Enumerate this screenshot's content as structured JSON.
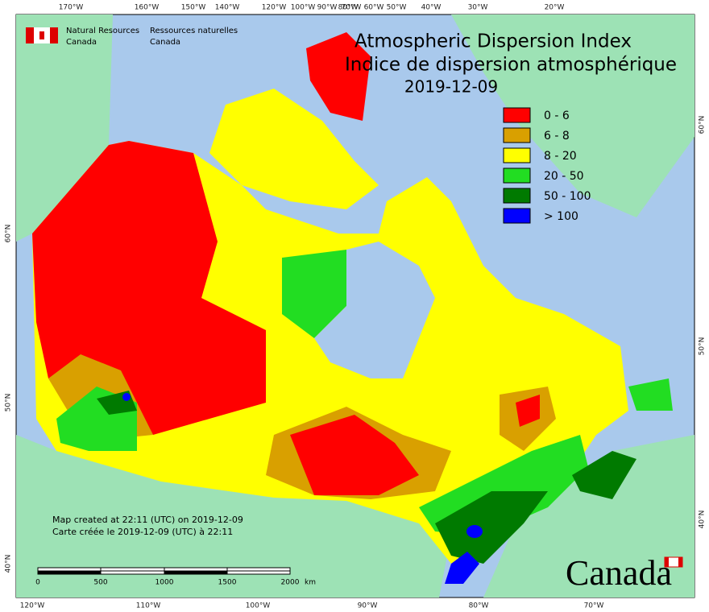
{
  "header": {
    "agency_en": [
      "Natural Resources",
      "Canada"
    ],
    "agency_fr": [
      "Ressources naturelles",
      "Canada"
    ]
  },
  "title": {
    "en": "Atmospheric Dispersion Index",
    "fr": "Indice de dispersion atmosphérique",
    "date": "2019-12-09"
  },
  "legend": [
    {
      "label": "0 - 6",
      "color": "#ff0000"
    },
    {
      "label": "6 - 8",
      "color": "#d9a000"
    },
    {
      "label": "8 - 20",
      "color": "#ffff00"
    },
    {
      "label": "20 - 50",
      "color": "#22dd22"
    },
    {
      "label": "50 - 100",
      "color": "#007a00"
    },
    {
      "label": "> 100",
      "color": "#0000ff"
    }
  ],
  "footer": [
    "Map created at 22:11 (UTC) on 2019-12-09",
    "Carte créée le 2019-12-09 (UTC) à 22:11"
  ],
  "scale_bar": {
    "labels": [
      0,
      500,
      1000,
      1500,
      2000
    ],
    "unit": "km"
  },
  "graticule": {
    "top": [
      "170°W",
      "160°W",
      "150°W",
      "140°W",
      "120°W",
      "100°W",
      "90°W",
      "80°W",
      "70°W",
      "60°W",
      "50°W",
      "40°W",
      "30°W",
      "20°W"
    ],
    "bottom": [
      "120°W",
      "110°W",
      "100°W",
      "90°W",
      "80°W",
      "70°W"
    ],
    "left": [
      "60°N",
      "50°N",
      "40°N"
    ],
    "right": [
      "60°N",
      "50°N",
      "40°N"
    ]
  },
  "wordmark": "Canada"
}
